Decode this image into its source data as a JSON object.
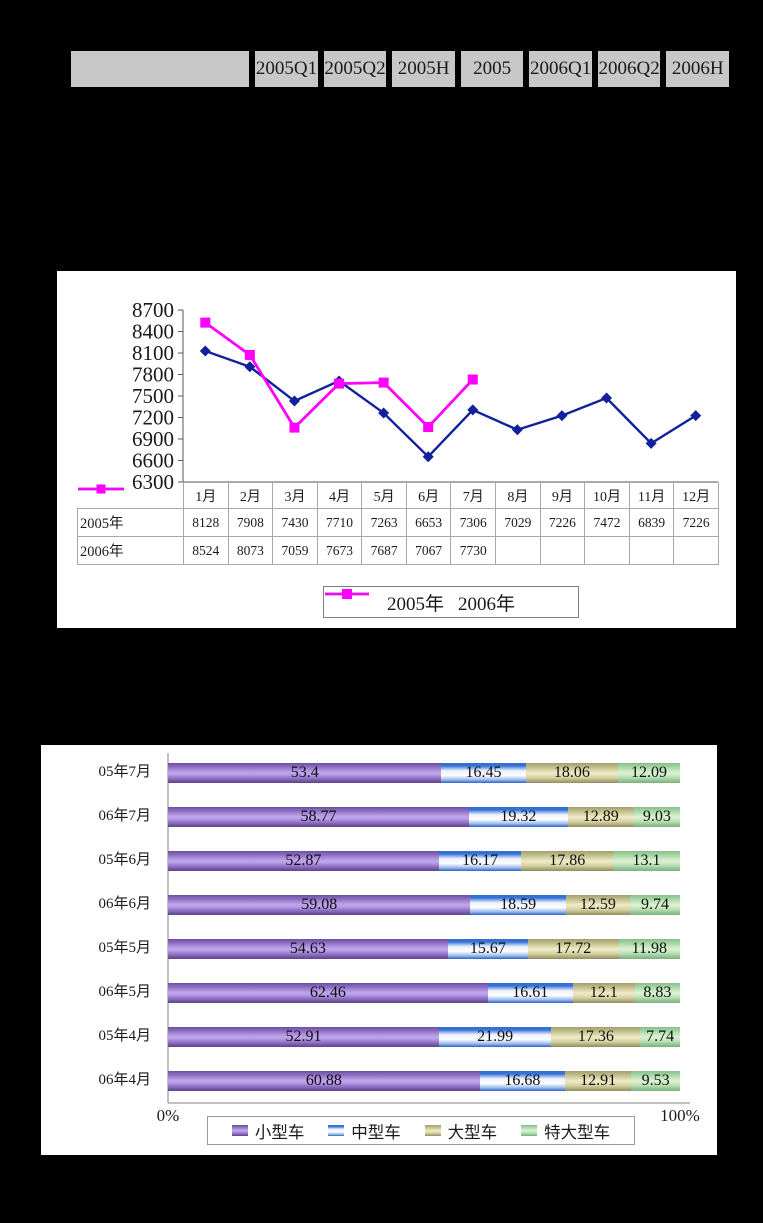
{
  "top_table": {
    "corner": "",
    "headers": [
      "2005Q1",
      "2005Q2",
      "2005H",
      "2005",
      "2006Q1",
      "2006Q2",
      "2006H"
    ]
  },
  "chart_data": [
    {
      "type": "line",
      "categories": [
        "1月",
        "2月",
        "3月",
        "4月",
        "5月",
        "6月",
        "7月",
        "8月",
        "9月",
        "10月",
        "11月",
        "12月"
      ],
      "series": [
        {
          "name": "2005年",
          "marker": "diamond",
          "color": "#11209C",
          "values": [
            8128,
            7908,
            7430,
            7710,
            7263,
            6653,
            7306,
            7029,
            7226,
            7472,
            6839,
            7226
          ]
        },
        {
          "name": "2006年",
          "marker": "square",
          "color": "#FF00FF",
          "values": [
            8524,
            8073,
            7059,
            7673,
            7687,
            7067,
            7730,
            null,
            null,
            null,
            null,
            null
          ]
        }
      ],
      "ylim": [
        6300,
        8700
      ],
      "ytick_step": 300,
      "grid": false,
      "data_table_shown": true,
      "legend_position": "bottom"
    },
    {
      "type": "bar",
      "stacked": true,
      "horizontal": true,
      "percent_stacked": true,
      "categories": [
        "05年7月",
        "06年7月",
        "05年6月",
        "06年6月",
        "05年5月",
        "06年5月",
        "05年4月",
        "06年4月"
      ],
      "series": [
        {
          "name": "小型车",
          "color": "#9A7FD0",
          "values": [
            53.4,
            58.77,
            52.87,
            59.08,
            54.63,
            62.46,
            52.91,
            60.88
          ]
        },
        {
          "name": "中型车",
          "color": "#3A74D8",
          "values": [
            16.45,
            19.32,
            16.17,
            18.59,
            15.67,
            16.61,
            21.99,
            16.68
          ]
        },
        {
          "name": "大型车",
          "color": "#C8C492",
          "values": [
            18.06,
            12.89,
            17.86,
            12.59,
            17.72,
            12.1,
            17.36,
            12.91
          ]
        },
        {
          "name": "特大型车",
          "color": "#9ED49A",
          "values": [
            12.09,
            9.03,
            13.1,
            9.74,
            11.98,
            8.83,
            7.74,
            9.53
          ]
        }
      ],
      "xlim": [
        0,
        100
      ],
      "x_axis_labels": {
        "min": "0%",
        "max": "100%"
      },
      "legend_position": "bottom"
    }
  ]
}
